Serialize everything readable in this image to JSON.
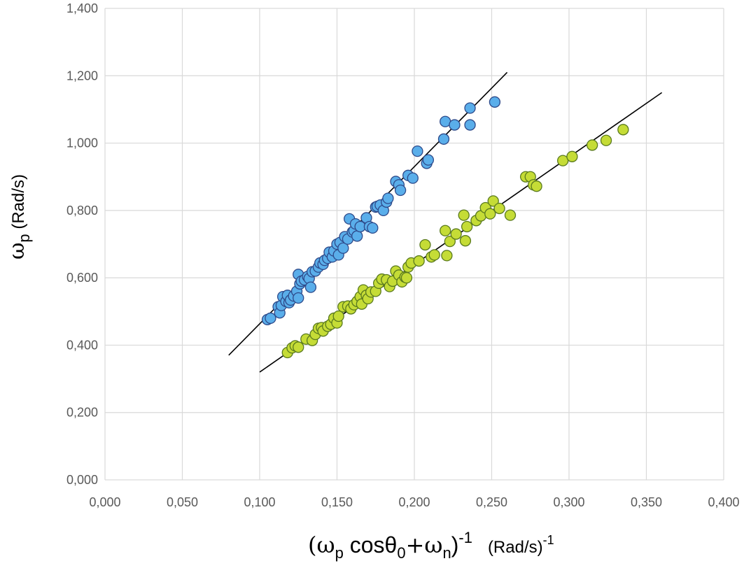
{
  "chart_data": {
    "type": "scatter",
    "title": "",
    "xlabel": {
      "base": "(ω",
      "sub1": "p",
      "mid": " cosθ",
      "sub2": "0",
      "mid2": "+ω",
      "sub3": "n",
      "close": ")",
      "sup": "-1",
      "unit": "(Rad/s)",
      "unit_sup": "-1"
    },
    "ylabel": {
      "base": "ω",
      "sub": "p",
      "unit": " (Rad/s)"
    },
    "xlim": [
      0,
      0.4
    ],
    "ylim": [
      0,
      1.4
    ],
    "x_ticks": [
      0,
      0.05,
      0.1,
      0.15,
      0.2,
      0.25,
      0.3,
      0.35,
      0.4
    ],
    "y_ticks": [
      0,
      0.2,
      0.4,
      0.6,
      0.8,
      1.0,
      1.2,
      1.4
    ],
    "x_tick_labels": [
      "0,000",
      "0,050",
      "0,100",
      "0,150",
      "0,200",
      "0,250",
      "0,300",
      "0,350",
      "0,400"
    ],
    "y_tick_labels": [
      "0,000",
      "0,200",
      "0,400",
      "0,600",
      "0,800",
      "1,000",
      "1,200",
      "1,400"
    ],
    "grid": true,
    "series": [
      {
        "color": "#5aaeea",
        "edge": "#2e4a8a",
        "points": [
          [
            0.105,
            0.476
          ],
          [
            0.107,
            0.48
          ],
          [
            0.112,
            0.514
          ],
          [
            0.113,
            0.496
          ],
          [
            0.114,
            0.518
          ],
          [
            0.115,
            0.544
          ],
          [
            0.117,
            0.53
          ],
          [
            0.118,
            0.548
          ],
          [
            0.119,
            0.526
          ],
          [
            0.12,
            0.534
          ],
          [
            0.122,
            0.546
          ],
          [
            0.124,
            0.56
          ],
          [
            0.125,
            0.54
          ],
          [
            0.125,
            0.61
          ],
          [
            0.126,
            0.582
          ],
          [
            0.127,
            0.59
          ],
          [
            0.129,
            0.594
          ],
          [
            0.131,
            0.604
          ],
          [
            0.132,
            0.598
          ],
          [
            0.133,
            0.572
          ],
          [
            0.134,
            0.618
          ],
          [
            0.136,
            0.62
          ],
          [
            0.138,
            0.632
          ],
          [
            0.139,
            0.644
          ],
          [
            0.141,
            0.64
          ],
          [
            0.142,
            0.652
          ],
          [
            0.144,
            0.658
          ],
          [
            0.145,
            0.676
          ],
          [
            0.147,
            0.662
          ],
          [
            0.148,
            0.68
          ],
          [
            0.15,
            0.7
          ],
          [
            0.151,
            0.668
          ],
          [
            0.152,
            0.705
          ],
          [
            0.154,
            0.688
          ],
          [
            0.155,
            0.722
          ],
          [
            0.157,
            0.715
          ],
          [
            0.158,
            0.775
          ],
          [
            0.16,
            0.736
          ],
          [
            0.161,
            0.74
          ],
          [
            0.162,
            0.76
          ],
          [
            0.163,
            0.724
          ],
          [
            0.165,
            0.752
          ],
          [
            0.169,
            0.778
          ],
          [
            0.171,
            0.752
          ],
          [
            0.173,
            0.748
          ],
          [
            0.175,
            0.81
          ],
          [
            0.176,
            0.812
          ],
          [
            0.178,
            0.816
          ],
          [
            0.18,
            0.8
          ],
          [
            0.182,
            0.825
          ],
          [
            0.183,
            0.836
          ],
          [
            0.188,
            0.886
          ],
          [
            0.19,
            0.876
          ],
          [
            0.191,
            0.86
          ],
          [
            0.196,
            0.904
          ],
          [
            0.199,
            0.896
          ],
          [
            0.202,
            0.976
          ],
          [
            0.208,
            0.94
          ],
          [
            0.209,
            0.95
          ],
          [
            0.219,
            1.012
          ],
          [
            0.22,
            1.064
          ],
          [
            0.226,
            1.054
          ],
          [
            0.236,
            1.104
          ],
          [
            0.236,
            1.054
          ],
          [
            0.252,
            1.122
          ]
        ]
      },
      {
        "color": "#c5dc36",
        "edge": "#5a7a1e",
        "points": [
          [
            0.118,
            0.378
          ],
          [
            0.121,
            0.392
          ],
          [
            0.123,
            0.398
          ],
          [
            0.125,
            0.394
          ],
          [
            0.13,
            0.418
          ],
          [
            0.134,
            0.414
          ],
          [
            0.136,
            0.432
          ],
          [
            0.138,
            0.45
          ],
          [
            0.14,
            0.452
          ],
          [
            0.141,
            0.442
          ],
          [
            0.144,
            0.456
          ],
          [
            0.146,
            0.462
          ],
          [
            0.148,
            0.48
          ],
          [
            0.15,
            0.466
          ],
          [
            0.151,
            0.486
          ],
          [
            0.154,
            0.514
          ],
          [
            0.157,
            0.516
          ],
          [
            0.159,
            0.508
          ],
          [
            0.161,
            0.52
          ],
          [
            0.163,
            0.53
          ],
          [
            0.165,
            0.544
          ],
          [
            0.166,
            0.522
          ],
          [
            0.167,
            0.564
          ],
          [
            0.169,
            0.548
          ],
          [
            0.17,
            0.538
          ],
          [
            0.172,
            0.558
          ],
          [
            0.175,
            0.56
          ],
          [
            0.177,
            0.584
          ],
          [
            0.179,
            0.596
          ],
          [
            0.182,
            0.594
          ],
          [
            0.184,
            0.574
          ],
          [
            0.186,
            0.59
          ],
          [
            0.188,
            0.62
          ],
          [
            0.19,
            0.608
          ],
          [
            0.192,
            0.588
          ],
          [
            0.194,
            0.602
          ],
          [
            0.195,
            0.6
          ],
          [
            0.196,
            0.632
          ],
          [
            0.198,
            0.644
          ],
          [
            0.203,
            0.65
          ],
          [
            0.207,
            0.698
          ],
          [
            0.211,
            0.662
          ],
          [
            0.213,
            0.668
          ],
          [
            0.22,
            0.74
          ],
          [
            0.221,
            0.666
          ],
          [
            0.223,
            0.708
          ],
          [
            0.227,
            0.73
          ],
          [
            0.232,
            0.786
          ],
          [
            0.233,
            0.71
          ],
          [
            0.234,
            0.752
          ],
          [
            0.24,
            0.77
          ],
          [
            0.243,
            0.784
          ],
          [
            0.246,
            0.808
          ],
          [
            0.249,
            0.79
          ],
          [
            0.251,
            0.828
          ],
          [
            0.255,
            0.806
          ],
          [
            0.262,
            0.786
          ],
          [
            0.272,
            0.9
          ],
          [
            0.275,
            0.9
          ],
          [
            0.277,
            0.876
          ],
          [
            0.279,
            0.872
          ],
          [
            0.296,
            0.948
          ],
          [
            0.302,
            0.96
          ],
          [
            0.315,
            0.994
          ],
          [
            0.324,
            1.008
          ],
          [
            0.335,
            1.04
          ]
        ]
      }
    ],
    "trendlines": [
      {
        "x1": 0.08,
        "y1": 0.37,
        "x2": 0.26,
        "y2": 1.21,
        "color": "#000000"
      },
      {
        "x1": 0.1,
        "y1": 0.32,
        "x2": 0.36,
        "y2": 1.15,
        "color": "#000000"
      }
    ]
  }
}
